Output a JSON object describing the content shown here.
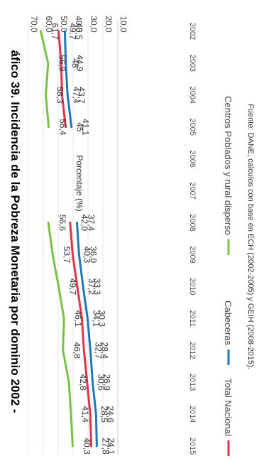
{
  "chart_data": {
    "type": "line",
    "title": "áfico 39. Incidencia de la Pobreza Monetaria por dominio 2002 -",
    "ylabel": "Porcentaje (%)",
    "ylim": [
      10,
      70
    ],
    "yticks": [
      "10,0",
      "20,0",
      "30,0",
      "40,0",
      "50,0",
      "60,0",
      "70,0"
    ],
    "categories": [
      "2002",
      "2003",
      "2004",
      "2005",
      "2006",
      "2007",
      "2008",
      "2009",
      "2010",
      "2011",
      "2012",
      "2013",
      "2014",
      "2015"
    ],
    "series": [
      {
        "name": "Total Nacional",
        "color": "#e0324d",
        "values": [
          49.7,
          48.0,
          47.4,
          45.0,
          null,
          null,
          42.0,
          40.3,
          37.2,
          34.1,
          32.7,
          30.6,
          28.5,
          27.8
        ],
        "labels": [
          "49,7",
          "48",
          "47,4",
          "45",
          "",
          "",
          "42,0",
          "40,3",
          "37,2",
          "34,1",
          "32,7",
          "30,6",
          "28,5",
          "27,8"
        ]
      },
      {
        "name": "Cabeceras",
        "color": "#1f78b4",
        "values": [
          45.5,
          44.9,
          43.7,
          41.1,
          null,
          null,
          37.4,
          36.0,
          33.3,
          30.3,
          28.4,
          26.9,
          24.6,
          24.1
        ],
        "labels": [
          "45,5",
          "44,9",
          "43,7",
          "41,1",
          "",
          "",
          "37,4",
          "36,0",
          "33,3",
          "30,3",
          "28,4",
          "26,9",
          "24,6",
          "24,1"
        ]
      },
      {
        "name": "Centros Poblados y rural disperso",
        "color": "#7ac143",
        "values": [
          61.7,
          56.8,
          58.3,
          56.4,
          null,
          null,
          56.6,
          53.7,
          49.7,
          46.1,
          46.8,
          42.8,
          41.4,
          40.3
        ],
        "labels": [
          "61,7",
          "56,8",
          "58,3",
          "56,4",
          "",
          "",
          "56,6",
          "53,7",
          "49,7",
          "46,1",
          "46,8",
          "42,8",
          "41,4",
          "40,3"
        ]
      }
    ],
    "legend_position": "bottom",
    "source": "Fuente: DANE, calculos con base en ECH (2002-2005) y GEIH (2008-2015)."
  }
}
